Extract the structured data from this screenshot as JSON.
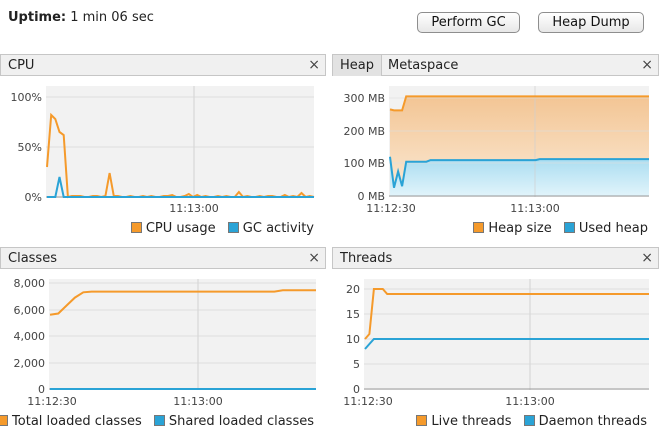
{
  "uptime": {
    "label": "Uptime:",
    "value": "1 min 06 sec"
  },
  "buttons": {
    "gc": "Perform GC",
    "dump": "Heap Dump"
  },
  "colors": {
    "orange": "#f59a2b",
    "blue": "#2aa3d6",
    "grid": "#dedede",
    "plot_bg": "#f2f2f2"
  },
  "close_glyph": "×",
  "cpu": {
    "tab": "CPU",
    "y_ticks": [
      "100%",
      "50%",
      "0%"
    ],
    "x_tick": "11:13:00",
    "legend": [
      "CPU usage",
      "GC activity"
    ]
  },
  "heap": {
    "tabs": [
      "Heap",
      "Metaspace"
    ],
    "y_ticks": [
      "300 MB",
      "200 MB",
      "100 MB",
      "0 MB"
    ],
    "x_ticks": [
      "11:12:30",
      "11:13:00"
    ],
    "legend": [
      "Heap size",
      "Used heap"
    ]
  },
  "classes": {
    "tab": "Classes",
    "y_ticks": [
      "8,000",
      "6,000",
      "4,000",
      "2,000",
      "0"
    ],
    "x_ticks": [
      "11:12:30",
      "11:13:00"
    ],
    "legend": [
      "Total loaded classes",
      "Shared loaded classes"
    ]
  },
  "threads": {
    "tab": "Threads",
    "y_ticks": [
      "20",
      "15",
      "10",
      "5",
      "0"
    ],
    "x_ticks": [
      "11:12:30",
      "11:13:00"
    ],
    "legend": [
      "Live threads",
      "Daemon threads"
    ]
  },
  "chart_data": [
    {
      "type": "line",
      "x_unit": "seconds",
      "ylim": [
        0,
        100
      ],
      "x": [
        0,
        1,
        2,
        3,
        4,
        5,
        6,
        7,
        8,
        9,
        10,
        11,
        12,
        13,
        14,
        15,
        16,
        17,
        18,
        19,
        20,
        21,
        22,
        23,
        24,
        25,
        26,
        27,
        28,
        29,
        30,
        31,
        32,
        33,
        34,
        35,
        36,
        37,
        38,
        39,
        40,
        41,
        42,
        43,
        44,
        45,
        46,
        47,
        48,
        49,
        50,
        51,
        52,
        53,
        54,
        55,
        56,
        57,
        58,
        59,
        60,
        61,
        62,
        63,
        64
      ],
      "series": [
        {
          "name": "CPU usage",
          "values": [
            30,
            82,
            78,
            65,
            62,
            0,
            1,
            1,
            1,
            0,
            0,
            1,
            1,
            0,
            1,
            24,
            1,
            1,
            0,
            0,
            1,
            0,
            0,
            1,
            0,
            1,
            0,
            0,
            1,
            1,
            2,
            0,
            0,
            1,
            3,
            0,
            2,
            0,
            1,
            0,
            0,
            1,
            0,
            1,
            0,
            0,
            5,
            0,
            1,
            0,
            0,
            1,
            0,
            1,
            1,
            0,
            0,
            2,
            0,
            1,
            0,
            4,
            0,
            1,
            0
          ]
        },
        {
          "name": "GC activity",
          "values": [
            0,
            0,
            0,
            20,
            0,
            0,
            0,
            0,
            0,
            0,
            0,
            0,
            0,
            0,
            0,
            0,
            0,
            0,
            0,
            0,
            0,
            0,
            0,
            0,
            0,
            0,
            0,
            0,
            0,
            0,
            0,
            0,
            0,
            0,
            0,
            0,
            0,
            0,
            0,
            0,
            0,
            0,
            0,
            0,
            0,
            0,
            0,
            0,
            0,
            0,
            0,
            0,
            0,
            0,
            0,
            0,
            0,
            0,
            0,
            0,
            0,
            0,
            0,
            0,
            0
          ]
        }
      ],
      "grid": true
    },
    {
      "type": "area",
      "y_unit": "MB",
      "ylim": [
        0,
        320
      ],
      "x": [
        0,
        1,
        2,
        3,
        4,
        5,
        6,
        7,
        8,
        9,
        10,
        11,
        12,
        13,
        14,
        15,
        16,
        17,
        18,
        19,
        20,
        21,
        22,
        23,
        24,
        25,
        26,
        27,
        28,
        29,
        30,
        31,
        32,
        33,
        34,
        35,
        36,
        37,
        38,
        39,
        40,
        41,
        42,
        43,
        44,
        45,
        46,
        47,
        48,
        49,
        50,
        51,
        52,
        53,
        54,
        55,
        56,
        57,
        58,
        59,
        60,
        61,
        62,
        63,
        64
      ],
      "series": [
        {
          "name": "Heap size",
          "values": [
            265,
            262,
            262,
            262,
            305,
            305,
            305,
            305,
            305,
            305,
            305,
            305,
            305,
            305,
            305,
            305,
            305,
            305,
            305,
            305,
            305,
            305,
            305,
            305,
            305,
            305,
            305,
            305,
            305,
            305,
            305,
            305,
            305,
            305,
            305,
            305,
            305,
            305,
            305,
            305,
            305,
            305,
            305,
            305,
            305,
            305,
            305,
            305,
            305,
            305,
            305,
            305,
            305,
            305,
            305,
            305,
            305,
            305,
            305,
            305,
            305,
            305,
            305,
            305,
            305
          ]
        },
        {
          "name": "Used heap",
          "values": [
            120,
            25,
            75,
            30,
            105,
            105,
            105,
            105,
            105,
            105,
            110,
            110,
            110,
            110,
            110,
            110,
            110,
            110,
            110,
            110,
            110,
            110,
            110,
            110,
            110,
            110,
            110,
            110,
            110,
            110,
            110,
            110,
            110,
            110,
            110,
            110,
            110,
            113,
            113,
            113,
            113,
            113,
            113,
            113,
            113,
            113,
            113,
            113,
            113,
            113,
            113,
            113,
            113,
            113,
            113,
            113,
            113,
            113,
            113,
            113,
            113,
            113,
            113,
            113,
            113
          ]
        }
      ],
      "grid": true
    },
    {
      "type": "line",
      "ylim": [
        0,
        8000
      ],
      "x": [
        0,
        2,
        4,
        6,
        8,
        10,
        12,
        20,
        30,
        40,
        50,
        54,
        56,
        60,
        64
      ],
      "series": [
        {
          "name": "Total loaded classes",
          "values": [
            5600,
            5700,
            6300,
            6900,
            7300,
            7350,
            7350,
            7350,
            7350,
            7350,
            7350,
            7350,
            7450,
            7450,
            7450
          ]
        },
        {
          "name": "Shared loaded classes",
          "values": [
            0,
            0,
            0,
            0,
            0,
            0,
            0,
            0,
            0,
            0,
            0,
            0,
            0,
            0,
            0
          ]
        }
      ],
      "grid": true
    },
    {
      "type": "line",
      "ylim": [
        0,
        22
      ],
      "x": [
        0,
        1,
        2,
        3,
        4,
        5,
        6,
        10,
        20,
        30,
        40,
        50,
        64
      ],
      "series": [
        {
          "name": "Live threads",
          "values": [
            10,
            11,
            20,
            20,
            20,
            19,
            19,
            19,
            19,
            19,
            19,
            19,
            19
          ]
        },
        {
          "name": "Daemon threads",
          "values": [
            8,
            9,
            10,
            10,
            10,
            10,
            10,
            10,
            10,
            10,
            10,
            10,
            10
          ]
        }
      ],
      "grid": true
    }
  ]
}
